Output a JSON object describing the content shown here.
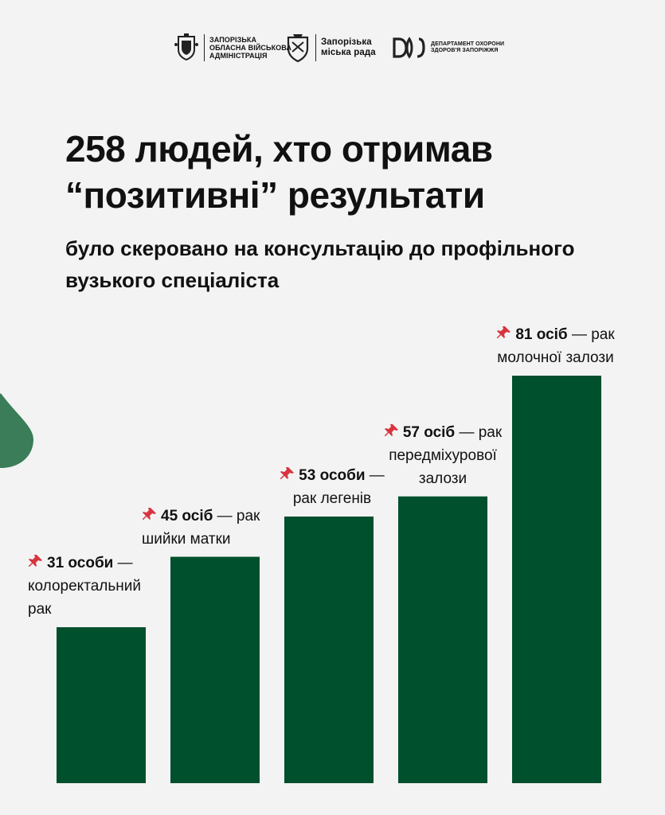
{
  "header": {
    "logo1_text": "ЗАПОРІЗЬКА ОБЛАСНА ВІЙСЬКОВА АДМІНІСТРАЦІЯ",
    "logo1_lines": [
      "ЗАПОРІЗЬКА",
      "ОБЛАСНА ВІЙСЬКОВА",
      "АДМІНІСТРАЦІЯ"
    ],
    "logo2_lines": [
      "Запорізька",
      "міська рада"
    ],
    "logo3_lines": [
      "ДЕПАРТАМЕНТ ОХОРОНИ",
      "ЗДОРОВ'Я ЗАПОРІЖЖЯ"
    ]
  },
  "title": "258 людей, хто отримав “позитивні” результати",
  "subtitle": "було скеровано на консультацію до профільного вузького спеціаліста",
  "colors": {
    "bar": "#004f2d",
    "deco": "#3a7d58",
    "pin": "#d8343f",
    "background": "#f3f3f3"
  },
  "icons": {
    "pin": "pushpin-icon"
  },
  "chart_data": {
    "type": "bar",
    "title": "258 людей, хто отримав “позитивні” результати",
    "categories": [
      "31 особи — колоректальний рак",
      "45 осіб — рак шийки матки",
      "53 особи — рак легенів",
      "57 осіб — рак передміхурової залози",
      "81 осіб — рак молочної залози"
    ],
    "values": [
      31,
      45,
      53,
      57,
      81
    ],
    "labels": [
      {
        "bold": "31 особи",
        "rest": " — колоректальний рак"
      },
      {
        "bold": "45 осіб",
        "rest": " — рак шийки матки"
      },
      {
        "bold": "53 особи",
        "rest": " — рак легенів"
      },
      {
        "bold": "57 осіб",
        "rest": " — рак передміхурової залози"
      },
      {
        "bold": "81 осіб",
        "rest": " — рак молочної залози"
      }
    ],
    "ylim": [
      0,
      100
    ],
    "grid": false,
    "legend": "none"
  }
}
